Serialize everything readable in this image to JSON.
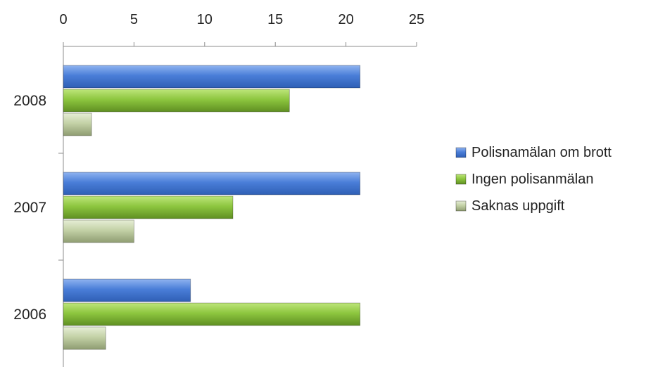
{
  "chart_data": {
    "type": "bar",
    "orientation": "horizontal",
    "categories": [
      "2008",
      "2007",
      "2006"
    ],
    "series": [
      {
        "name": "Polisnamälan om brott",
        "values": [
          21,
          21,
          9
        ],
        "color": "#4a7ed8"
      },
      {
        "name": "Ingen polisanmälan",
        "values": [
          16,
          12,
          21
        ],
        "color": "#8dc63f"
      },
      {
        "name": "Saknas uppgift",
        "values": [
          2,
          5,
          3
        ],
        "color": "#c3d1a6"
      }
    ],
    "xlim": [
      0,
      25
    ],
    "x_ticks": [
      0,
      5,
      10,
      15,
      20,
      25
    ],
    "x_axis_position": "top",
    "grid": false,
    "legend_position": "right",
    "title": "",
    "xlabel": "",
    "ylabel": ""
  }
}
